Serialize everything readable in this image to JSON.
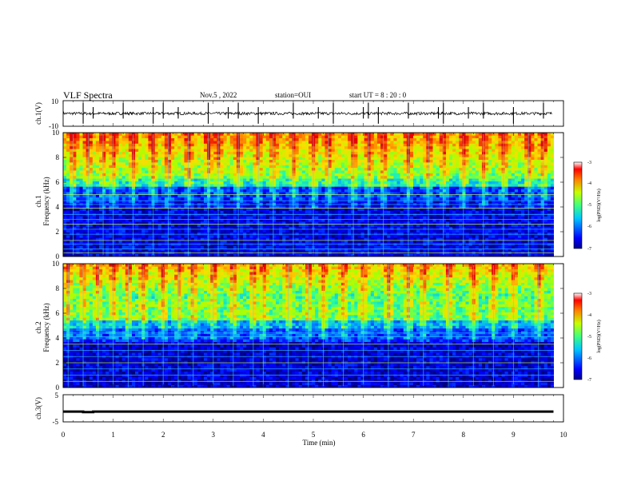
{
  "header": {
    "title": "VLF Spectra",
    "date": "Nov.5  , 2022",
    "station": "station=OUI",
    "start_ut": "start  UT  =   8  : 20 : 0"
  },
  "colors": {
    "spectrogram_colormap": [
      "#00008f",
      "#0000ff",
      "#0080ff",
      "#00ffff",
      "#80ff80",
      "#ffff00",
      "#ff8000",
      "#ff0000",
      "#800000"
    ]
  },
  "chart_data": [
    {
      "type": "line",
      "panel": "ch1-waveform",
      "ylabel": "ch.1(V)",
      "ylim": [
        -10,
        10
      ],
      "yticks": [
        "10",
        "-10"
      ],
      "xlim": [
        0,
        10
      ],
      "series": [
        {
          "description_of_shape": "noisy waveform near 0 V with intermittent spikes",
          "baseline": 0,
          "spike_times_min": [
            0.4,
            0.6,
            1.2,
            1.8,
            2.0,
            2.3,
            2.9,
            3.3,
            3.5,
            3.9,
            4.6,
            5.1,
            5.4,
            6.0,
            6.1,
            6.3,
            6.9,
            7.5,
            7.6,
            8.1,
            8.4,
            9.0,
            9.6
          ]
        }
      ]
    },
    {
      "type": "heatmap",
      "panel": "ch1-spectrogram",
      "ylabel": "ch.1",
      "ylabel2": "Frequency  (kHz)",
      "ylim": [
        0,
        10
      ],
      "yticks": [
        "0",
        "2",
        "4",
        "6",
        "8",
        "10"
      ],
      "xlim": [
        0,
        9.8
      ],
      "colorbar": {
        "range": [
          -7,
          -3
        ],
        "ticks": [
          "-3",
          "-4",
          "-5",
          "-6",
          "-7"
        ],
        "label": "log(PSD)(V²/Hz)"
      },
      "features": {
        "low_band_khz": [
          0,
          5.7
        ],
        "high_band_khz": [
          5.7,
          10
        ],
        "lines_khz": [
          0.3,
          0.6,
          1.0,
          1.3,
          1.8,
          2.2,
          2.6,
          3.0,
          3.4,
          3.9,
          4.2,
          4.5,
          5.0
        ],
        "event_times_min": [
          0.2,
          0.5,
          0.8,
          1.0,
          1.4,
          1.8,
          2.1,
          2.5,
          2.9,
          3.1,
          3.5,
          3.9,
          4.2,
          4.6,
          5.0,
          5.3,
          5.8,
          6.1,
          6.4,
          6.9,
          7.3,
          7.6,
          8.0,
          8.4,
          8.8,
          9.3,
          9.6
        ]
      }
    },
    {
      "type": "heatmap",
      "panel": "ch2-spectrogram",
      "ylabel": "ch.2",
      "ylabel2": "Frequency  (kHz)",
      "ylim": [
        0,
        10
      ],
      "yticks": [
        "0",
        "2",
        "4",
        "6",
        "8",
        "10"
      ],
      "xlim": [
        0,
        9.8
      ],
      "colorbar": {
        "range": [
          -7,
          -3
        ],
        "ticks": [
          "-3",
          "-4",
          "-5",
          "-6",
          "-7"
        ],
        "label": "log(PSD)(V²/Hz)"
      },
      "features": {
        "low_band_khz": [
          0,
          5.2
        ],
        "mid_band_khz": [
          5.2,
          7.2
        ],
        "high_band_khz": [
          7.2,
          10
        ],
        "lines_khz": [
          0.5,
          1.0,
          1.5,
          2.0,
          2.5,
          3.0,
          3.5,
          4.1,
          4.4
        ],
        "event_times_min": [
          0.1,
          0.4,
          0.7,
          1.0,
          1.3,
          1.6,
          2.0,
          2.3,
          2.6,
          3.0,
          3.4,
          3.8,
          4.0,
          4.5,
          4.9,
          5.2,
          5.6,
          6.0,
          6.5,
          6.9,
          7.2,
          7.7,
          8.2,
          8.6,
          9.0,
          9.5
        ]
      }
    },
    {
      "type": "line",
      "panel": "ch3-trace",
      "ylabel": "ch.3(V)",
      "ylim": [
        -5,
        5
      ],
      "yticks": [
        "5",
        "-5"
      ],
      "xlim": [
        0,
        10
      ],
      "xticks": [
        "0",
        "1",
        "2",
        "3",
        "4",
        "5",
        "6",
        "7",
        "8",
        "9",
        "10"
      ],
      "xlabel": "Time  (min)",
      "series": [
        {
          "x": [
            0,
            0.4,
            0.4,
            0.6,
            0.6,
            9.8
          ],
          "y": [
            -1.2,
            -1.2,
            -1.4,
            -1.4,
            -1.2,
            -1.2
          ]
        }
      ]
    }
  ]
}
